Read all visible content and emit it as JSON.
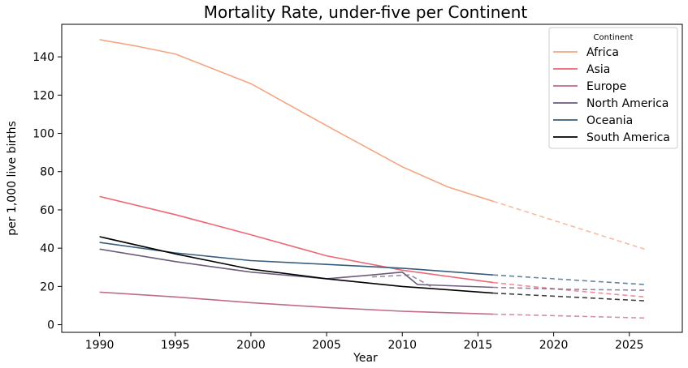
{
  "chart_data": {
    "type": "line",
    "title": "Mortality Rate, under-five per Continent",
    "xlabel": "Year",
    "ylabel": "per 1,000 live births",
    "xlim": [
      1987.5,
      2028.5
    ],
    "ylim": [
      -4,
      157
    ],
    "xticks": [
      1990,
      1995,
      2000,
      2005,
      2010,
      2015,
      2020,
      2025
    ],
    "yticks": [
      0,
      20,
      40,
      60,
      80,
      100,
      120,
      140
    ],
    "grid": false,
    "legend_title": "Continent",
    "legend_position": "top-right",
    "series": [
      {
        "name": "Africa",
        "color": "#f4a582",
        "actual": [
          [
            1990,
            149
          ],
          [
            1992.5,
            145.5
          ],
          [
            1995,
            141.5
          ],
          [
            2000,
            126
          ],
          [
            2005,
            104
          ],
          [
            2010,
            82.5
          ],
          [
            2013,
            72
          ],
          [
            2016,
            64.5
          ]
        ],
        "forecast": [
          [
            2016,
            64.5
          ],
          [
            2021,
            52
          ],
          [
            2026,
            39.5
          ]
        ]
      },
      {
        "name": "Asia",
        "color": "#ee6677",
        "actual": [
          [
            1990,
            67
          ],
          [
            1995,
            57.5
          ],
          [
            2000,
            47
          ],
          [
            2005,
            36
          ],
          [
            2010,
            28.5
          ],
          [
            2016,
            22
          ]
        ],
        "forecast": [
          [
            2016,
            22
          ],
          [
            2021,
            18
          ],
          [
            2026,
            14.5
          ]
        ]
      },
      {
        "name": "Europe",
        "color": "#c06c84",
        "actual": [
          [
            1990,
            17
          ],
          [
            1995,
            14.5
          ],
          [
            2000,
            11.5
          ],
          [
            2005,
            9
          ],
          [
            2010,
            7
          ],
          [
            2016,
            5.5
          ]
        ],
        "forecast": [
          [
            2016,
            5.5
          ],
          [
            2021,
            4.5
          ],
          [
            2026,
            3.5
          ]
        ]
      },
      {
        "name": "North America",
        "color": "#6c5b7b",
        "actual": [
          [
            1990,
            39.5
          ],
          [
            1995,
            33
          ],
          [
            2000,
            27.5
          ],
          [
            2005,
            24
          ],
          [
            2008,
            26
          ],
          [
            2010,
            27.5
          ],
          [
            2011,
            21
          ],
          [
            2016,
            19.5
          ]
        ],
        "forecast": [
          [
            2016,
            19.5
          ],
          [
            2021,
            18.5
          ],
          [
            2026,
            18
          ]
        ],
        "extra": [
          [
            2008,
            25
          ],
          [
            2010.5,
            26
          ],
          [
            2012,
            19.5
          ]
        ]
      },
      {
        "name": "Oceania",
        "color": "#355c7d",
        "actual": [
          [
            1990,
            43
          ],
          [
            1995,
            37.5
          ],
          [
            2000,
            33.5
          ],
          [
            2005,
            31.5
          ],
          [
            2010,
            29.5
          ],
          [
            2016,
            26
          ]
        ],
        "forecast": [
          [
            2016,
            26
          ],
          [
            2021,
            23.5
          ],
          [
            2026,
            21
          ]
        ]
      },
      {
        "name": "South America",
        "color": "#000000",
        "actual": [
          [
            1990,
            46
          ],
          [
            1995,
            37
          ],
          [
            2000,
            29
          ],
          [
            2005,
            24
          ],
          [
            2010,
            20
          ],
          [
            2016,
            16.5
          ]
        ],
        "forecast": [
          [
            2016,
            16.5
          ],
          [
            2021,
            14.5
          ],
          [
            2026,
            12.5
          ]
        ]
      }
    ]
  }
}
